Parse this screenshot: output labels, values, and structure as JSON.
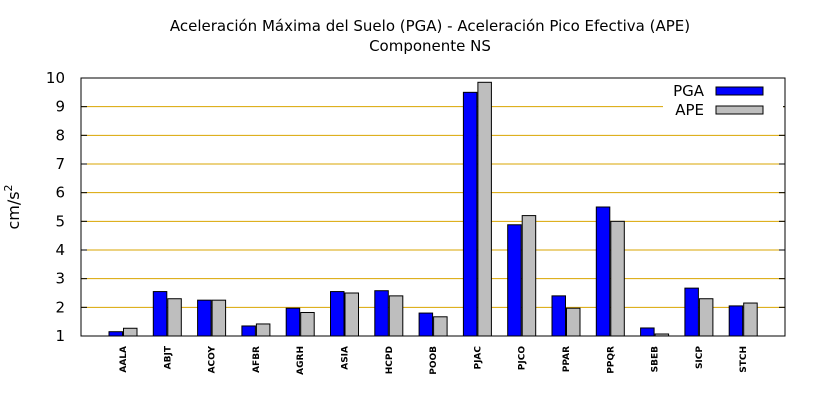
{
  "chart_data": {
    "type": "bar",
    "title": "Aceleración Máxima del Suelo (PGA) -  Aceleración Pico Efectiva (APE)",
    "subtitle": "Componente NS",
    "xlabel": "",
    "ylabel": "cm/s",
    "ylabel_superscript": "2",
    "ylim": [
      1,
      10
    ],
    "yticks": [
      1,
      2,
      3,
      4,
      5,
      6,
      7,
      8,
      9,
      10
    ],
    "grid": true,
    "legend_position": "top-right",
    "categories": [
      "AALA",
      "ABJT",
      "ACOY",
      "AFBR",
      "AGRH",
      "ASIA",
      "HCPD",
      "POOB",
      "PJAC",
      "PJCO",
      "PPAR",
      "PPQR",
      "SBEB",
      "SICP",
      "STCH"
    ],
    "series": [
      {
        "name": "PGA",
        "color": "#0000ff",
        "values": [
          1.15,
          2.55,
          2.25,
          1.35,
          1.97,
          2.55,
          2.58,
          1.8,
          9.5,
          4.88,
          2.4,
          5.5,
          1.28,
          2.67,
          2.05
        ]
      },
      {
        "name": "APE",
        "color": "#bebebe",
        "values": [
          1.27,
          2.3,
          2.25,
          1.42,
          1.82,
          2.5,
          2.4,
          1.67,
          9.85,
          5.2,
          1.97,
          5.0,
          1.07,
          2.3,
          2.15
        ]
      }
    ]
  }
}
